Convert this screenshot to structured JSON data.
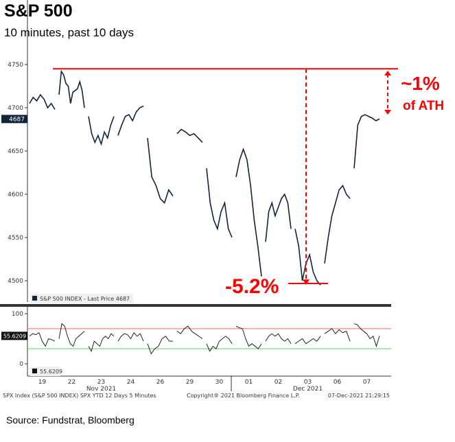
{
  "header": {
    "title": "S&P 500",
    "subtitle": "10 minutes, past 10 days"
  },
  "source": "Source: Fundstrat, Bloomberg",
  "annotations": {
    "pct_from_ath": "~1%",
    "ath_label": "of ATH",
    "drawdown": "-5.2%",
    "color": "#ff0000"
  },
  "footer": {
    "left": "SPX Index (S&P 500 INDEX) SPX YTD 12 Days 5 Minutes",
    "center": "Copyright® 2021 Bloomberg Finance L.P.",
    "right": "07-Dec-2021 21:29:15"
  },
  "chart_data": [
    {
      "type": "line",
      "title": "S&P 500 INDEX - Last Price",
      "legend": "S&P 500 INDEX - Last Price 4687",
      "last_value_label": "4687",
      "last_value": 4687,
      "ylim": [
        4490,
        4760
      ],
      "yticks": [
        4500,
        4550,
        4600,
        4650,
        4700,
        4750
      ],
      "ath": 4745,
      "low": 4495,
      "x_ticks": [
        "19",
        "22",
        "23",
        "24",
        "26",
        "29",
        "30",
        "01",
        "02",
        "03",
        "06",
        "07"
      ],
      "x_months": [
        {
          "label": "Nov 2021",
          "at_day": 2.5
        },
        {
          "label": "Dec 2021",
          "at_day": 9.5
        }
      ],
      "days": [
        [
          4705,
          4712,
          4708,
          4715,
          4710,
          4700,
          4705,
          4698
        ],
        [
          4715,
          4742,
          4738,
          4728,
          4725,
          4705,
          4718,
          4720,
          4722,
          4730,
          4720,
          4700
        ],
        [
          4690,
          4670,
          4660,
          4668,
          4658,
          4672,
          4665,
          4680,
          4690
        ],
        [
          4668,
          4680,
          4690,
          4692,
          4685,
          4695,
          4700,
          4702
        ],
        [
          4665,
          4620,
          4610,
          4595,
          4590,
          4605,
          4598
        ],
        [
          4670,
          4675,
          4672,
          4668,
          4670,
          4665,
          4660
        ],
        [
          4630,
          4590,
          4570,
          4560,
          4580,
          4590,
          4560,
          4550
        ],
        [
          4620,
          4640,
          4652,
          4640,
          4610,
          4570,
          4540,
          4505
        ],
        [
          4545,
          4580,
          4590,
          4575,
          4585,
          4595,
          4600,
          4590,
          4560
        ],
        [
          4560,
          4540,
          4500,
          4520,
          4530,
          4510,
          4500,
          4495
        ],
        [
          4520,
          4550,
          4575,
          4590,
          4605,
          4610,
          4600,
          4595
        ],
        [
          4630,
          4680,
          4690,
          4692,
          4690,
          4688,
          4685,
          4687
        ]
      ]
    },
    {
      "type": "line",
      "title": "RSI",
      "legend": "55.6209",
      "last_value_label": "55.6209",
      "last_value": 55.6209,
      "ylim": [
        0,
        100
      ],
      "yticks": [
        0,
        100
      ],
      "overbought": 70,
      "oversold": 30,
      "days": [
        [
          55,
          60,
          58,
          62,
          45,
          35,
          50,
          48,
          45
        ],
        [
          50,
          80,
          75,
          55,
          40,
          35,
          50,
          55,
          60,
          65
        ],
        [
          35,
          25,
          45,
          40,
          35,
          50,
          55,
          50,
          60,
          55
        ],
        [
          45,
          55,
          60,
          58,
          50,
          62,
          55,
          60,
          45
        ],
        [
          40,
          20,
          30,
          35,
          50,
          55,
          45,
          45
        ],
        [
          65,
          60,
          70,
          75,
          65,
          60,
          55,
          50
        ],
        [
          40,
          25,
          35,
          30,
          45,
          50,
          55,
          50,
          40
        ],
        [
          75,
          72,
          70,
          50,
          35,
          40,
          35,
          30,
          40
        ],
        [
          45,
          55,
          60,
          55,
          60,
          50,
          45,
          50,
          40
        ],
        [
          40,
          45,
          50,
          40,
          45,
          50,
          45,
          55
        ],
        [
          60,
          65,
          70,
          60,
          68,
          62,
          65,
          45
        ],
        [
          80,
          78,
          70,
          65,
          60,
          50,
          55,
          35,
          55.6
        ]
      ]
    }
  ]
}
